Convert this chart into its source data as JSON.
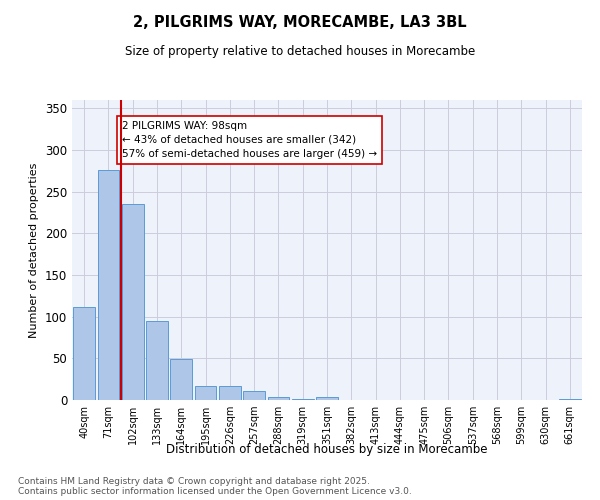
{
  "title": "2, PILGRIMS WAY, MORECAMBE, LA3 3BL",
  "subtitle": "Size of property relative to detached houses in Morecambe",
  "xlabel": "Distribution of detached houses by size in Morecambe",
  "ylabel": "Number of detached properties",
  "bar_labels": [
    "40sqm",
    "71sqm",
    "102sqm",
    "133sqm",
    "164sqm",
    "195sqm",
    "226sqm",
    "257sqm",
    "288sqm",
    "319sqm",
    "351sqm",
    "382sqm",
    "413sqm",
    "444sqm",
    "475sqm",
    "506sqm",
    "537sqm",
    "568sqm",
    "599sqm",
    "630sqm",
    "661sqm"
  ],
  "bar_values": [
    112,
    276,
    235,
    95,
    49,
    17,
    17,
    11,
    4,
    1,
    4,
    0,
    0,
    0,
    0,
    0,
    0,
    0,
    0,
    0,
    1
  ],
  "bar_color": "#aec6e8",
  "bar_edge_color": "#5b9bd5",
  "vline_x": 1.5,
  "vline_color": "#cc0000",
  "annotation_text": "2 PILGRIMS WAY: 98sqm\n← 43% of detached houses are smaller (342)\n57% of semi-detached houses are larger (459) →",
  "annotation_box_color": "#ffffff",
  "annotation_box_edge": "#cc0000",
  "ylim": [
    0,
    360
  ],
  "yticks": [
    0,
    50,
    100,
    150,
    200,
    250,
    300,
    350
  ],
  "grid_color": "#ccccdd",
  "bg_color": "#eef2fa",
  "footer1": "Contains HM Land Registry data © Crown copyright and database right 2025.",
  "footer2": "Contains public sector information licensed under the Open Government Licence v3.0."
}
